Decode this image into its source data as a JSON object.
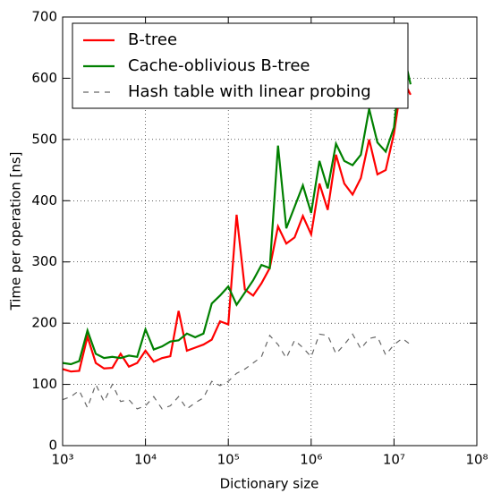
{
  "chart_data": {
    "type": "line",
    "xlabel": "Dictionary size",
    "ylabel": "Time per operation [ns]",
    "x": [
      1000,
      1259,
      1585,
      1995,
      2512,
      3162,
      3981,
      5012,
      6310,
      7943,
      10000,
      12589,
      15849,
      19953,
      25119,
      31623,
      39811,
      50119,
      63096,
      79433,
      100000,
      125893,
      158489,
      199526,
      251189,
      316228,
      398107,
      501187,
      630957,
      794328,
      1000000,
      1258925,
      1584893,
      1995262,
      2511886,
      3162278,
      3981072,
      5011872,
      6309573,
      7943282,
      10000000,
      12589254,
      15848932
    ],
    "series": [
      {
        "name": "B-tree",
        "color": "#ff0000",
        "style": "solid",
        "values": [
          125,
          121,
          122,
          178,
          135,
          126,
          127,
          150,
          129,
          135,
          155,
          137,
          143,
          146,
          220,
          155,
          160,
          165,
          173,
          203,
          198,
          377,
          255,
          245,
          265,
          290,
          358,
          330,
          340,
          375,
          345,
          428,
          385,
          475,
          428,
          410,
          437,
          500,
          443,
          450,
          510,
          600,
          573
        ]
      },
      {
        "name": "Cache-oblivious B-tree",
        "color": "#008000",
        "style": "solid",
        "values": [
          135,
          133,
          138,
          188,
          150,
          143,
          145,
          143,
          147,
          145,
          190,
          157,
          162,
          170,
          172,
          183,
          177,
          183,
          232,
          245,
          260,
          230,
          250,
          270,
          295,
          290,
          490,
          355,
          390,
          425,
          380,
          465,
          420,
          493,
          465,
          458,
          475,
          550,
          495,
          480,
          520,
          650,
          590
        ]
      },
      {
        "name": "Hash table with linear probing",
        "color": "#666666",
        "style": "dashed",
        "values": [
          75,
          80,
          90,
          62,
          100,
          72,
          100,
          72,
          75,
          60,
          65,
          80,
          60,
          65,
          80,
          60,
          70,
          78,
          105,
          98,
          105,
          118,
          125,
          135,
          145,
          180,
          165,
          143,
          172,
          160,
          145,
          182,
          180,
          150,
          165,
          182,
          158,
          175,
          178,
          148,
          165,
          175,
          165
        ]
      }
    ],
    "xscale": "log",
    "xlim": [
      1000,
      100000000
    ],
    "xticks": [
      {
        "value": 1000,
        "label": "10³"
      },
      {
        "value": 10000,
        "label": "10⁴"
      },
      {
        "value": 100000,
        "label": "10⁵"
      },
      {
        "value": 1000000,
        "label": "10⁶"
      },
      {
        "value": 10000000,
        "label": "10⁷"
      },
      {
        "value": 100000000,
        "label": "10⁸"
      }
    ],
    "ylim": [
      0,
      700
    ],
    "yticks": [
      0,
      100,
      200,
      300,
      400,
      500,
      600,
      700
    ],
    "grid": true,
    "legend": "upper left"
  }
}
